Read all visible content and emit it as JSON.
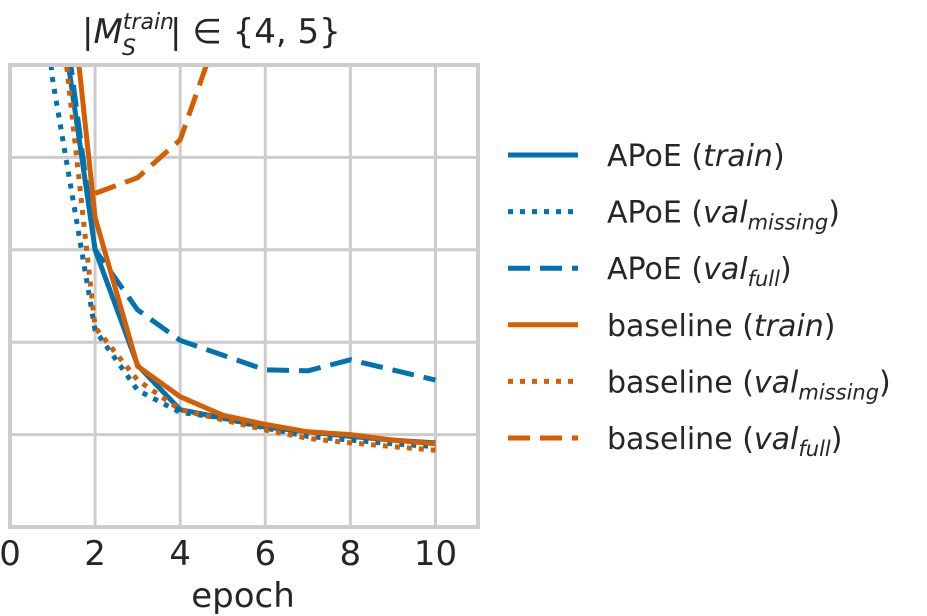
{
  "chart_data": {
    "type": "line",
    "title": {
      "prefix": "|M",
      "sub": "S",
      "sup": "train",
      "suffix": "| ∈ {4, 5}"
    },
    "xlabel": "epoch",
    "ylabel": "",
    "xlim": [
      0,
      11
    ],
    "ylim": [
      0,
      5
    ],
    "x_ticks": [
      "0",
      "2",
      "4",
      "6",
      "8",
      "10"
    ],
    "y_ticks_shown": false,
    "grid": true,
    "legend_placement": "right-outside",
    "x": [
      0,
      1,
      2,
      3,
      4,
      5,
      6,
      7,
      8,
      9,
      10
    ],
    "series": [
      {
        "name": "APoE (train)",
        "label": "APoE (",
        "label_it": "train",
        "label_sub": "",
        "label_end": ")",
        "color": "#0072B2",
        "style": "solid",
        "values": [
          null,
          6.2,
          3.0,
          1.75,
          1.27,
          1.18,
          1.08,
          1.03,
          0.98,
          0.94,
          0.91
        ]
      },
      {
        "name": "APoE (val_missing)",
        "label": "APoE (",
        "label_it": "val",
        "label_sub": "missing",
        "label_end": ")",
        "color": "#0072B2",
        "style": "dotted",
        "values": [
          9.0,
          4.85,
          2.13,
          1.48,
          1.24,
          1.18,
          1.07,
          0.98,
          0.94,
          0.9,
          0.87
        ]
      },
      {
        "name": "APoE (val_full)",
        "label": "APoE (",
        "label_it": "val",
        "label_sub": "full",
        "label_end": ")",
        "color": "#0072B2",
        "style": "dashed",
        "values": [
          null,
          6.5,
          3.0,
          2.35,
          2.02,
          1.86,
          1.7,
          1.69,
          1.81,
          1.7,
          1.59
        ]
      },
      {
        "name": "baseline (train)",
        "label": "baseline (",
        "label_it": "train",
        "label_sub": "",
        "label_end": ")",
        "color": "#D55E00",
        "style": "solid",
        "values": [
          null,
          7.7,
          3.35,
          1.74,
          1.41,
          1.21,
          1.11,
          1.03,
          1.0,
          0.94,
          0.9
        ]
      },
      {
        "name": "baseline (val_missing)",
        "label": "baseline (",
        "label_it": "val",
        "label_sub": "missing",
        "label_end": ")",
        "color": "#D55E00",
        "style": "dotted",
        "values": [
          null,
          6.4,
          2.16,
          1.59,
          1.27,
          1.16,
          1.05,
          0.96,
          0.91,
          0.87,
          0.83
        ]
      },
      {
        "name": "baseline (val_full)",
        "label": "baseline (",
        "label_it": "val",
        "label_sub": "full",
        "label_end": ")",
        "color": "#D55E00",
        "style": "dashed",
        "values": [
          null,
          null,
          3.61,
          3.78,
          4.19,
          5.5,
          null,
          null,
          null,
          null,
          null
        ]
      }
    ]
  }
}
